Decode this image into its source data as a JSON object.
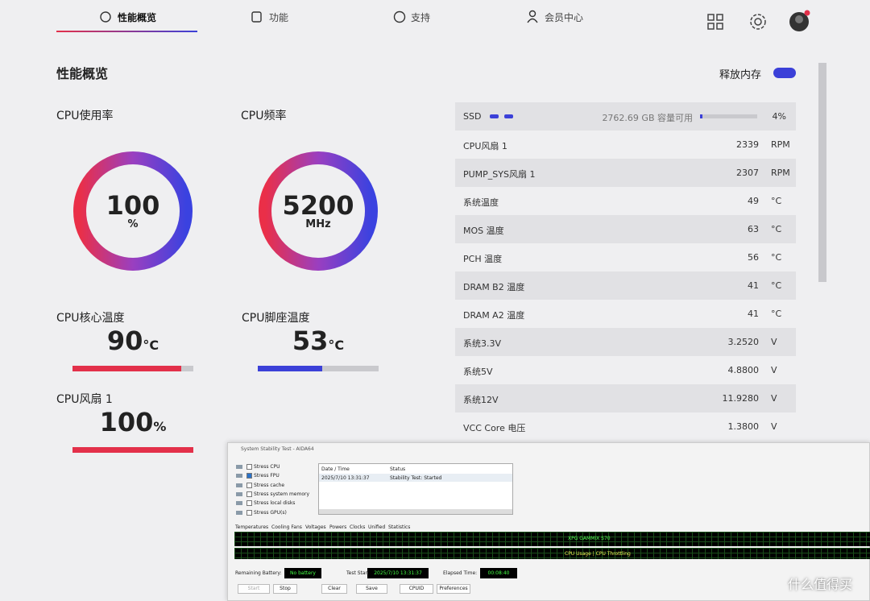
{
  "nav": {
    "tabs": [
      "性能概览",
      "功能",
      "支持",
      "会员中心"
    ]
  },
  "section_title": "性能概览",
  "release_memory": "释放内存",
  "gauges": [
    {
      "label": "CPU使用率",
      "value": "100",
      "unit": "%"
    },
    {
      "label": "CPU频率",
      "value": "5200",
      "unit": "MHz"
    }
  ],
  "meters": [
    {
      "label": "CPU核心温度",
      "value": 90,
      "unit": "°C",
      "color": "#e3304a"
    },
    {
      "label": "CPU脚座温度",
      "value": 53,
      "unit": "°C",
      "color": "#3b40d8"
    },
    {
      "label": "CPU风扇 1",
      "value": 100,
      "unit": "%",
      "color": "#e3304a"
    }
  ],
  "ssd": {
    "label": "SSD",
    "free": "2762.69 GB 容量可用",
    "percent": 4,
    "percent_label": "4%"
  },
  "sensors": [
    [
      "CPU风扇 1",
      "2339",
      "RPM"
    ],
    [
      "PUMP_SYS风扇 1",
      "2307",
      "RPM"
    ],
    [
      "系统温度",
      "49",
      "°C"
    ],
    [
      "MOS 温度",
      "63",
      "°C"
    ],
    [
      "PCH 温度",
      "56",
      "°C"
    ],
    [
      "DRAM B2 温度",
      "41",
      "°C"
    ],
    [
      "DRAM A2 温度",
      "41",
      "°C"
    ],
    [
      "系统3.3V",
      "3.2520",
      "V"
    ],
    [
      "系统5V",
      "4.8800",
      "V"
    ],
    [
      "系统12V",
      "11.9280",
      "V"
    ],
    [
      "VCC Core 电压",
      "1.3800",
      "V"
    ]
  ],
  "aida": {
    "title": "System Stability Test - AIDA64",
    "checks": [
      [
        "Stress CPU",
        false
      ],
      [
        "Stress FPU",
        true
      ],
      [
        "Stress cache",
        false
      ],
      [
        "Stress system memory",
        false
      ],
      [
        "Stress local disks",
        false
      ],
      [
        "Stress GPU(s)",
        false
      ]
    ],
    "log_headers": [
      "Date / Time",
      "Status"
    ],
    "log_rows": [
      [
        "2025/7/10 13:31:37",
        "Stability Test: Started"
      ]
    ],
    "tabs": [
      "Temperatures",
      "Cooling Fans",
      "Voltages",
      "Powers",
      "Clocks",
      "Unified",
      "Statistics"
    ],
    "graph_labels": [
      "XPG GAMMIX S70",
      "CPU Usage | CPU Throttling"
    ],
    "status": [
      [
        "Remaining Battery:",
        "No battery"
      ],
      [
        "Test Started:",
        "2025/7/10 13:31:37"
      ],
      [
        "Elapsed Time:",
        "00:08:40"
      ]
    ],
    "buttons": [
      "Start",
      "Stop",
      "Clear",
      "Save",
      "CPUID",
      "Preferences"
    ]
  },
  "watermark": "什么值得买"
}
